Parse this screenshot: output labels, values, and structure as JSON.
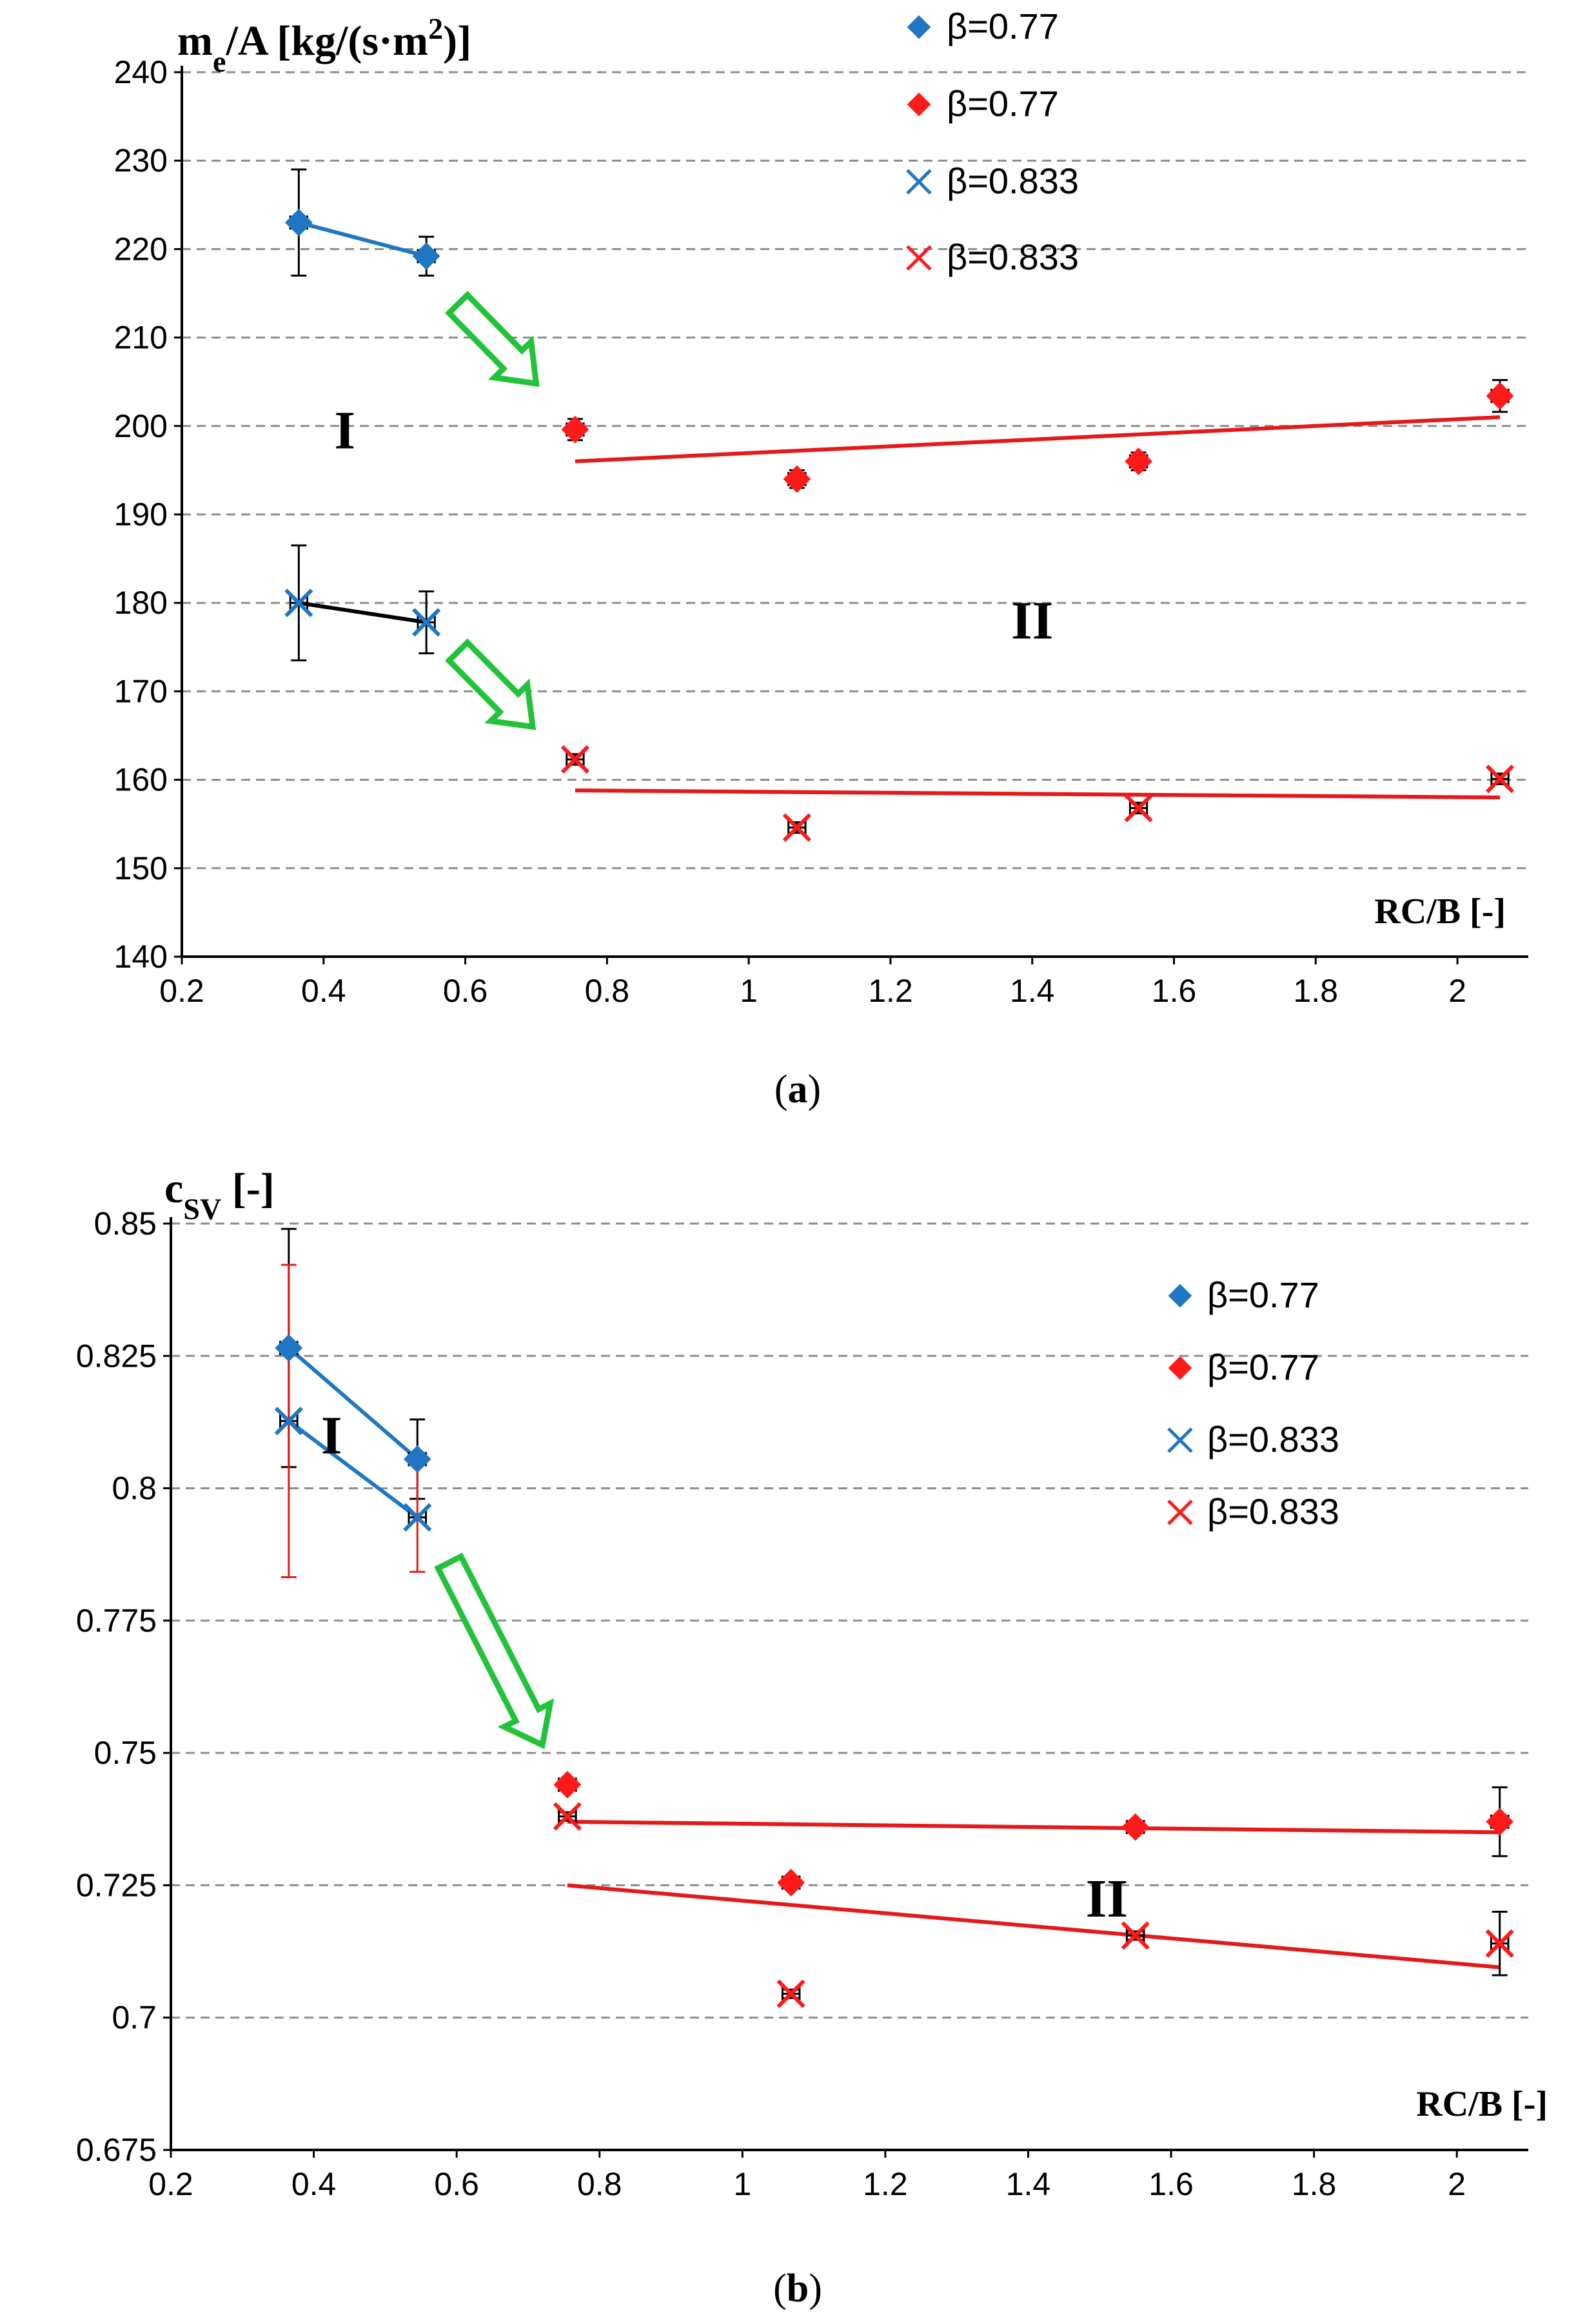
{
  "chart_data": [
    {
      "id": "a",
      "type": "scatter",
      "caption": "(a)",
      "caption_letter": "a",
      "ylabel_main": "m",
      "ylabel_sub": "e",
      "ylabel_rest": "/A [kg/(s·m",
      "ylabel_sup": "2",
      "ylabel_end": ")]",
      "xlabel": "RC/B [-]",
      "xlim": [
        0.2,
        2.1
      ],
      "ylim": [
        140,
        240
      ],
      "xticks": [
        0.2,
        0.4,
        0.6,
        0.8,
        1,
        1.2,
        1.4,
        1.6,
        1.8,
        2
      ],
      "xtick_labels": [
        "0.2",
        "0.4",
        "0.6",
        "0.8",
        "1",
        "1.2",
        "1.4",
        "1.6",
        "1.8",
        "2"
      ],
      "yticks": [
        140,
        150,
        160,
        170,
        180,
        190,
        200,
        210,
        220,
        230,
        240
      ],
      "ytick_labels": [
        "140",
        "150",
        "160",
        "170",
        "180",
        "190",
        "200",
        "210",
        "220",
        "230",
        "240"
      ],
      "grid": "horizontal dashed",
      "legend_position": "top-right",
      "legend": [
        {
          "label": "β=0.77",
          "marker": "diamond",
          "color": "#1f77c4"
        },
        {
          "label": "β=0.77",
          "marker": "diamond",
          "color": "#ff1a1a"
        },
        {
          "label": "β=0.833",
          "marker": "x",
          "color": "#1f77c4"
        },
        {
          "label": "β=0.833",
          "marker": "x",
          "color": "#ff1a1a"
        }
      ],
      "series": [
        {
          "name": "β=0.77 (I)",
          "marker": "diamond",
          "color": "#1f77c4",
          "line_color": "#1f77c4",
          "x": [
            0.365,
            0.545
          ],
          "y": [
            223,
            219.2
          ],
          "yerr": [
            6,
            2.2
          ],
          "xerr": [
            0.012,
            0.012
          ],
          "err_color": "#000000"
        },
        {
          "name": "β=0.77 (II)",
          "marker": "diamond",
          "color": "#ff1a1a",
          "line_color": null,
          "x": [
            0.755,
            1.068,
            1.55,
            2.06
          ],
          "y": [
            199.6,
            194,
            196,
            203.4
          ],
          "yerr": [
            1.2,
            1,
            1,
            1.8
          ],
          "xerr": [
            0.012,
            0.012,
            0.012,
            0.012
          ],
          "err_color": "#000000"
        },
        {
          "name": "β=0.833 (I)",
          "marker": "x",
          "color": "#1f77c4",
          "line_color": "#000000",
          "x": [
            0.365,
            0.545
          ],
          "y": [
            180,
            177.8
          ],
          "yerr": [
            6.5,
            3.5
          ],
          "xerr": [
            0.012,
            0.012
          ],
          "err_color": "#000000"
        },
        {
          "name": "β=0.833 (II)",
          "marker": "x",
          "color": "#ff1a1a",
          "line_color": null,
          "x": [
            0.755,
            1.068,
            1.55,
            2.06
          ],
          "y": [
            162.3,
            154.6,
            156.8,
            160.1
          ],
          "yerr": [
            0.6,
            0.6,
            0.6,
            0.6
          ],
          "xerr": [
            0.012,
            0.012,
            0.012,
            0.012
          ],
          "err_color": "#000000"
        }
      ],
      "trendlines": [
        {
          "name": "trend β=0.77 region II",
          "color": "#e41a1a",
          "x": [
            0.755,
            2.06
          ],
          "y": [
            196,
            201
          ]
        },
        {
          "name": "trend β=0.833 region II",
          "color": "#e41a1a",
          "x": [
            0.755,
            2.06
          ],
          "y": [
            158.8,
            158
          ]
        }
      ],
      "annotations": [
        {
          "text": "I",
          "x": 0.43,
          "y": 199.5
        },
        {
          "text": "II",
          "x": 1.4,
          "y": 178
        }
      ],
      "arrows": [
        {
          "color": "#22c33a",
          "x1": 0.59,
          "y1": 213.8,
          "x2": 0.7,
          "y2": 204.8
        },
        {
          "color": "#22c33a",
          "x1": 0.59,
          "y1": 174.5,
          "x2": 0.695,
          "y2": 166
        }
      ]
    },
    {
      "id": "b",
      "type": "scatter",
      "caption": "(b)",
      "caption_letter": "b",
      "ylabel_main": "c",
      "ylabel_sub": "SV",
      "ylabel_rest": " [-]",
      "ylabel_sup": "",
      "ylabel_end": "",
      "xlabel": "RC/B [-]",
      "xlim": [
        0.2,
        2.1
      ],
      "ylim": [
        0.675,
        0.85
      ],
      "xticks": [
        0.2,
        0.4,
        0.6,
        0.8,
        1,
        1.2,
        1.4,
        1.6,
        1.8,
        2
      ],
      "xtick_labels": [
        "0.2",
        "0.4",
        "0.6",
        "0.8",
        "1",
        "1.2",
        "1.4",
        "1.6",
        "1.8",
        "2"
      ],
      "yticks": [
        0.675,
        0.7,
        0.725,
        0.75,
        0.775,
        0.8,
        0.825,
        0.85
      ],
      "ytick_labels": [
        "0.675",
        "0.7",
        "0.725",
        "0.75",
        "0.775",
        "0.8",
        "0.825",
        "0.85"
      ],
      "grid": "horizontal dashed",
      "legend_position": "top-right",
      "legend": [
        {
          "label": "β=0.77",
          "marker": "diamond",
          "color": "#1f77c4"
        },
        {
          "label": "β=0.77",
          "marker": "diamond",
          "color": "#ff1a1a"
        },
        {
          "label": "β=0.833",
          "marker": "x",
          "color": "#1f77c4"
        },
        {
          "label": "β=0.833",
          "marker": "x",
          "color": "#ff1a1a"
        }
      ],
      "series": [
        {
          "name": "β=0.77 (I)",
          "marker": "diamond",
          "color": "#1f77c4",
          "line_color": "#1f77c4",
          "x": [
            0.365,
            0.545
          ],
          "y": [
            0.8265,
            0.8055
          ],
          "yerr": [
            0.0225,
            0.0075
          ],
          "xerr": [
            0.012,
            0.012
          ],
          "err_color": "#000000"
        },
        {
          "name": "β=0.833 (I)",
          "marker": "x",
          "color": "#1f77c4",
          "line_color": "#1f77c4",
          "x": [
            0.365,
            0.545
          ],
          "y": [
            0.8127,
            0.7945
          ],
          "yerr": [
            0.0295,
            0.0103
          ],
          "xerr": [
            0.012,
            0.012
          ],
          "err_color": "#e41a1a"
        },
        {
          "name": "β=0.77 (II)",
          "marker": "diamond",
          "color": "#ff1a1a",
          "line_color": null,
          "x": [
            0.755,
            1.068,
            1.55,
            2.06
          ],
          "y": [
            0.744,
            0.7255,
            0.736,
            0.737
          ],
          "yerr": [
            0.0008,
            0.0008,
            0.0008,
            0.0065
          ],
          "xerr": [
            0.012,
            0.012,
            0.012,
            0.012
          ],
          "err_color": "#000000"
        },
        {
          "name": "β=0.833 (II)",
          "marker": "x",
          "color": "#ff1a1a",
          "line_color": null,
          "x": [
            0.755,
            1.068,
            1.55,
            2.06
          ],
          "y": [
            0.738,
            0.7045,
            0.7155,
            0.714
          ],
          "yerr": [
            0.0008,
            0.0008,
            0.0008,
            0.006
          ],
          "xerr": [
            0.012,
            0.012,
            0.012,
            0.012
          ],
          "err_color": "#000000"
        }
      ],
      "trendlines": [
        {
          "name": "trend β=0.77 region II",
          "color": "#e41a1a",
          "x": [
            0.755,
            2.06
          ],
          "y": [
            0.737,
            0.735
          ]
        },
        {
          "name": "trend β=0.833 region II",
          "color": "#e41a1a",
          "x": [
            0.755,
            2.06
          ],
          "y": [
            0.725,
            0.7095
          ]
        }
      ],
      "annotations": [
        {
          "text": "I",
          "x": 0.425,
          "y": 0.81
        },
        {
          "text": "II",
          "x": 1.51,
          "y": 0.7225
        }
      ],
      "arrows": [
        {
          "color": "#22c33a",
          "x1": 0.59,
          "y1": 0.786,
          "x2": 0.72,
          "y2": 0.7515
        }
      ]
    }
  ]
}
